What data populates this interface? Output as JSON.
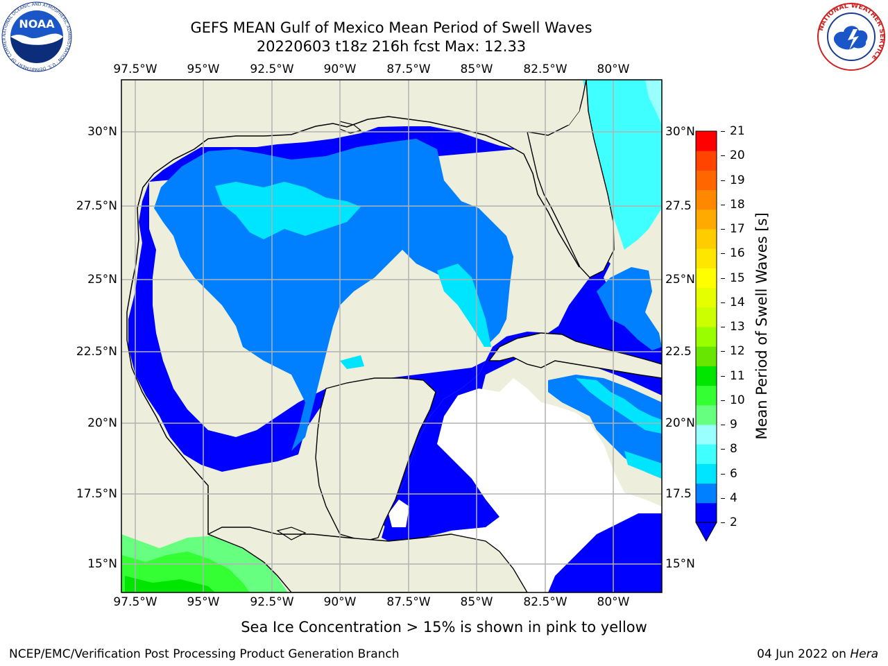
{
  "title": {
    "line1": "GEFS MEAN Gulf of Mexico Mean Period of Swell Waves",
    "line2": "20220603 t18z 216h fcst   Max: 12.33"
  },
  "map": {
    "lon_labels": [
      "97.5°W",
      "95°W",
      "92.5°W",
      "90°W",
      "87.5°W",
      "85°W",
      "82.5°W",
      "80°W"
    ],
    "lat_labels": [
      "30°N",
      "27.5°N",
      "25°N",
      "22.5°N",
      "20°N",
      "17.5°N",
      "15°N"
    ],
    "lat_labels_right": [
      "30°N",
      "27.5",
      "25°N",
      "22.5",
      "20°N",
      "17.5",
      "15°N"
    ],
    "colors": {
      "land": "#eeeedc",
      "coast": "#000000",
      "grid": "#b2b2b2",
      "missing": "#ffffff"
    },
    "extent": {
      "lon_min": -98.0,
      "lon_max": -78.2,
      "lat_min": 14.0,
      "lat_max": 31.8
    }
  },
  "colorbar": {
    "label": "Mean Period of Swell Waves [s]",
    "ticks": [
      "21",
      "20",
      "19",
      "18",
      "17",
      "16",
      "15",
      "14",
      "13",
      "12",
      "11",
      "10",
      "9",
      "8",
      "6",
      "4",
      "2"
    ],
    "colors": [
      "#0000ff",
      "#0080ff",
      "#00e5ff",
      "#40ffff",
      "#99ffff",
      "#66ff80",
      "#33ff33",
      "#00e600",
      "#66e600",
      "#99ff00",
      "#ccff00",
      "#e6ff00",
      "#ffff00",
      "#ffe600",
      "#ffcc00",
      "#ffaa00",
      "#ff8800",
      "#ff6600",
      "#ff4400",
      "#ff0000"
    ]
  },
  "caption": "Sea Ice Concentration > 15% is shown in pink to yellow",
  "footer": {
    "left": "NCEP/EMC/Verification Post Processing Product Generation Branch",
    "date": "04 Jun 2022 on ",
    "machine": "Hera"
  },
  "logos": {
    "noaa": "NOAA",
    "noaa_ring": "NATIONAL OCEANIC AND ATMOSPHERIC ADMINISTRATION · U.S. DEPARTMENT OF COMMERCE",
    "nws_ring": "NATIONAL WEATHER SERVICE"
  }
}
